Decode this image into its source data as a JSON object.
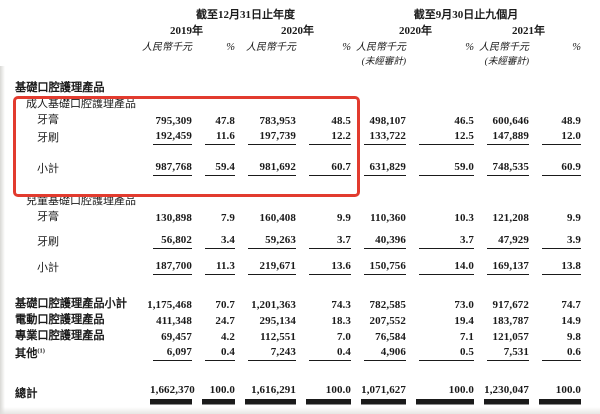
{
  "page": {
    "background": "#ffffff",
    "text_color": "#1b1b1b",
    "highlight_color": "#e23b2e",
    "rule_color": "#1a1a1a"
  },
  "header": {
    "group1": "截至12月31日止年度",
    "group2": "截至9月30日止九個月",
    "col_groups": [
      {
        "year": "2019年",
        "unit": "人民幣千元",
        "pct": "%",
        "unaudited": ""
      },
      {
        "year": "2020年",
        "unit": "人民幣千元",
        "pct": "%",
        "unaudited": ""
      },
      {
        "year": "2020年",
        "unit": "人民幣千元",
        "pct": "%",
        "unaudited": "(未經審計)"
      },
      {
        "year": "2021年",
        "unit": "人民幣千元",
        "pct": "%",
        "unaudited": "(未經審計)"
      }
    ]
  },
  "table": {
    "rows": [
      {
        "type": "section",
        "indent": 0,
        "label": "基礎口腔護理產品",
        "h": 15
      },
      {
        "type": "plain",
        "indent": 1,
        "label": "成人基礎口腔護理產品",
        "h": 15
      },
      {
        "type": "item",
        "indent": 2,
        "label": "牙膏",
        "h": 14,
        "values": [
          "795,309",
          "47.8",
          "783,953",
          "48.5",
          "498,107",
          "46.5",
          "600,646",
          "48.9"
        ]
      },
      {
        "type": "item",
        "indent": 2,
        "label": "牙刷",
        "h": 18,
        "underline": true,
        "values": [
          "192,459",
          "11.6",
          "197,739",
          "12.2",
          "133,722",
          "12.5",
          "147,889",
          "12.0"
        ]
      },
      {
        "type": "spacer",
        "h": 13
      },
      {
        "type": "item",
        "indent": 2,
        "label": "小計",
        "h": 18,
        "underline": true,
        "values": [
          "987,768",
          "59.4",
          "981,692",
          "60.7",
          "631,829",
          "59.0",
          "748,535",
          "60.9"
        ]
      },
      {
        "type": "spacer",
        "h": 16
      },
      {
        "type": "plain",
        "indent": 1,
        "label": "兒童基礎口腔護理產品",
        "h": 15
      },
      {
        "type": "item",
        "indent": 2,
        "label": "牙膏",
        "h": 15,
        "values": [
          "130,898",
          "7.9",
          "160,408",
          "9.9",
          "110,360",
          "10.3",
          "121,208",
          "9.9"
        ]
      },
      {
        "type": "spacer",
        "h": 7
      },
      {
        "type": "item",
        "indent": 2,
        "label": "牙刷",
        "h": 18,
        "underline": true,
        "values": [
          "56,802",
          "3.4",
          "59,263",
          "3.7",
          "40,396",
          "3.7",
          "47,929",
          "3.9"
        ]
      },
      {
        "type": "spacer",
        "h": 8
      },
      {
        "type": "item",
        "indent": 2,
        "label": "小計",
        "h": 18,
        "underline": true,
        "values": [
          "187,700",
          "11.3",
          "219,671",
          "13.6",
          "150,756",
          "14.0",
          "169,137",
          "13.8"
        ]
      },
      {
        "type": "spacer",
        "h": 20
      },
      {
        "type": "bold",
        "indent": 0,
        "label": "基礎口腔護理產品小計",
        "h": 16,
        "values": [
          "1,175,468",
          "70.7",
          "1,201,363",
          "74.3",
          "782,585",
          "73.0",
          "917,672",
          "74.7"
        ]
      },
      {
        "type": "bold",
        "indent": 0,
        "label": "電動口腔護理產品",
        "h": 16,
        "values": [
          "411,348",
          "24.7",
          "295,134",
          "18.3",
          "207,552",
          "19.4",
          "183,787",
          "14.9"
        ]
      },
      {
        "type": "bold",
        "indent": 0,
        "label": "專業口腔護理產品",
        "h": 16,
        "values": [
          "69,457",
          "4.2",
          "112,551",
          "7.0",
          "76,584",
          "7.1",
          "121,057",
          "9.8"
        ]
      },
      {
        "type": "bold",
        "indent": 0,
        "label": "其他",
        "sup": "(1)",
        "h": 18,
        "underline": true,
        "values": [
          "6,097",
          "0.4",
          "7,243",
          "0.4",
          "4,906",
          "0.5",
          "7,531",
          "0.6"
        ]
      },
      {
        "type": "spacer",
        "h": 18
      },
      {
        "type": "bold",
        "indent": 0,
        "label": "總計",
        "h": 22,
        "doubleline": true,
        "values": [
          "1,662,370",
          "100.0",
          "1,616,291",
          "100.0",
          "1,071,627",
          "100.0",
          "1,230,047",
          "100.0"
        ]
      }
    ]
  }
}
